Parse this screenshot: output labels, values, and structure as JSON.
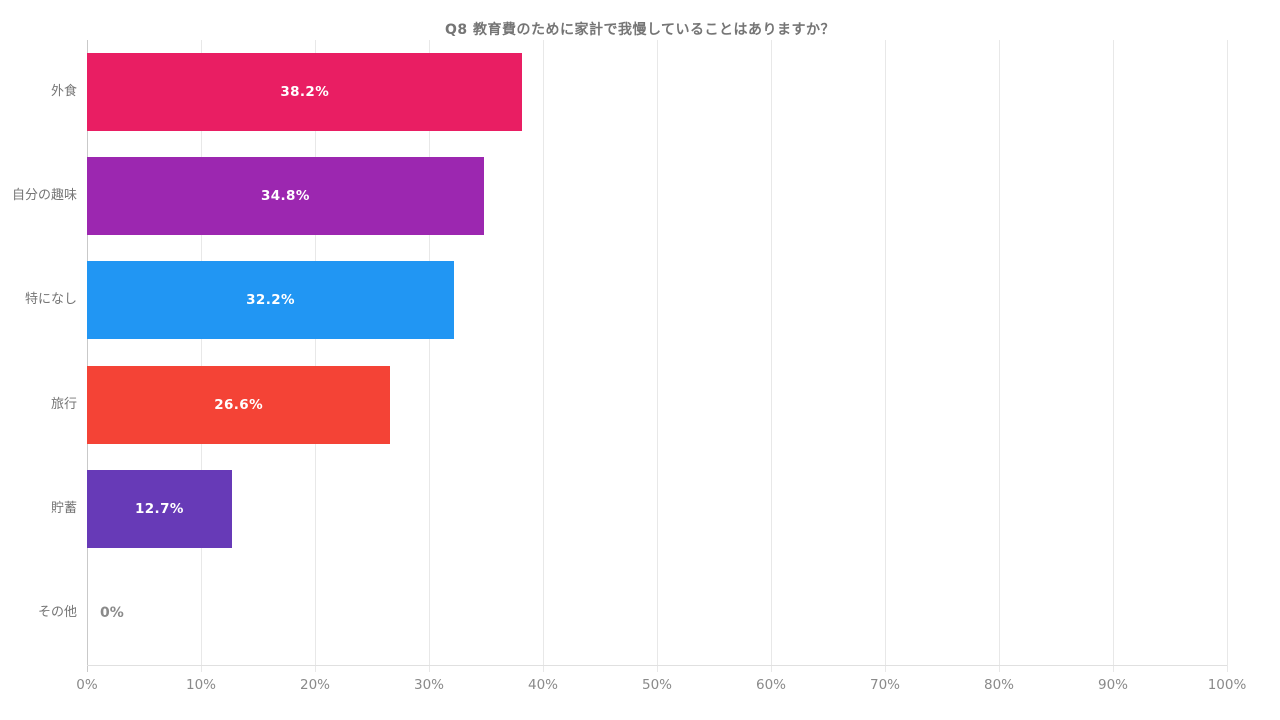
{
  "chart_data": {
    "type": "bar",
    "orientation": "horizontal",
    "title": "Q8 教育費のために家計で我慢していることはありますか？",
    "categories": [
      "外食",
      "自分の趣味",
      "特になし",
      "旅行",
      "貯蓄",
      "その他"
    ],
    "values": [
      38.2,
      34.8,
      32.2,
      26.6,
      12.7,
      0
    ],
    "value_labels": [
      "38.2%",
      "34.8%",
      "32.2%",
      "26.6%",
      "12.7%",
      "0%"
    ],
    "bar_colors": [
      "#e91e63",
      "#9c27b0",
      "#2196f3",
      "#f44336",
      "#673ab7",
      null
    ],
    "xlabel": "",
    "ylabel": "",
    "xlim": [
      0,
      100
    ],
    "x_ticks": [
      "0%",
      "10%",
      "20%",
      "30%",
      "40%",
      "50%",
      "60%",
      "70%",
      "80%",
      "90%",
      "100%"
    ],
    "grid": "vertical-only",
    "legend": "none",
    "colors": {
      "background": "#ffffff",
      "title_text": "#757575",
      "category_text": "#757575",
      "tick_text": "#8a8a8a",
      "bar_value_text": "#ffffff",
      "zero_value_text": "#8a8a8a",
      "gridline": "#e8e8e8",
      "y_axis_line": "#c9c9c9",
      "x_axis_line": "#e0e0e0"
    }
  }
}
